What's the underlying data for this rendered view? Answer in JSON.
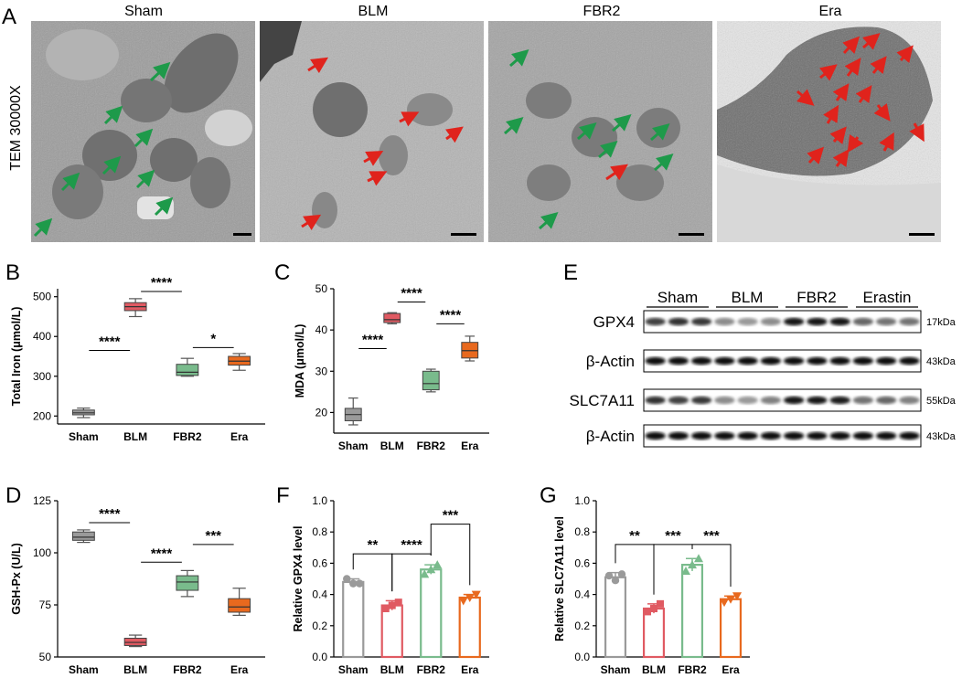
{
  "panel_letters": {
    "A": "A",
    "B": "B",
    "C": "C",
    "D": "D",
    "E": "E",
    "F": "F",
    "G": "G"
  },
  "tem": {
    "side_label": "TEM 30000X",
    "titles": [
      "Sham",
      "BLM",
      "FBR2",
      "Era"
    ],
    "colors": {
      "healthy": "#1e9a4a",
      "damaged": "#e0231c"
    }
  },
  "western_blot": {
    "groups": [
      "Sham",
      "BLM",
      "FBR2",
      "Erastin"
    ],
    "rows": [
      {
        "label": "GPX4",
        "kda": "17kDa",
        "intensities": [
          0.75,
          0.8,
          0.78,
          0.45,
          0.4,
          0.45,
          0.9,
          0.92,
          0.9,
          0.6,
          0.55,
          0.55
        ]
      },
      {
        "label": "β-Actin",
        "kda": "43kDa",
        "intensities": [
          0.95,
          0.95,
          0.95,
          0.95,
          0.95,
          0.95,
          0.95,
          0.95,
          0.95,
          0.95,
          0.95,
          0.95
        ]
      },
      {
        "label": "SLC7A11",
        "kda": "55kDa",
        "intensities": [
          0.8,
          0.75,
          0.78,
          0.45,
          0.4,
          0.5,
          0.9,
          0.9,
          0.88,
          0.55,
          0.6,
          0.5
        ]
      },
      {
        "label": "β-Actin",
        "kda": "43kDa",
        "intensities": [
          0.95,
          0.95,
          0.95,
          0.95,
          0.95,
          0.95,
          0.95,
          0.95,
          0.95,
          0.95,
          0.95,
          0.95
        ]
      }
    ]
  },
  "group_colors": [
    "#9a9a9a",
    "#e05a62",
    "#79bb8c",
    "#e8691e"
  ],
  "chart_data": [
    {
      "panel": "B",
      "type": "box",
      "categories": [
        "Sham",
        "BLM",
        "FBR2",
        "Era"
      ],
      "ylabel": "Total Iron (μmol/L)",
      "ylim": [
        180,
        520
      ],
      "yticks": [
        200,
        300,
        400,
        500
      ],
      "boxes": [
        {
          "min": 196,
          "q1": 203,
          "median": 208,
          "q3": 215,
          "max": 220
        },
        {
          "min": 450,
          "q1": 465,
          "median": 475,
          "q3": 485,
          "max": 495
        },
        {
          "min": 300,
          "q1": 302,
          "median": 310,
          "q3": 330,
          "max": 345
        },
        {
          "min": 315,
          "q1": 328,
          "median": 338,
          "q3": 350,
          "max": 357
        }
      ],
      "annotations": [
        {
          "text": "****",
          "from": 0,
          "to": 1,
          "y": 365
        },
        {
          "text": "****",
          "from": 1,
          "to": 2,
          "y": 513
        },
        {
          "text": "*",
          "from": 2,
          "to": 3,
          "y": 372
        }
      ]
    },
    {
      "panel": "C",
      "type": "box",
      "categories": [
        "Sham",
        "BLM",
        "FBR2",
        "Era"
      ],
      "ylabel": "MDA (μmol/L)",
      "ylim": [
        15,
        50
      ],
      "yticks": [
        20,
        30,
        40,
        50
      ],
      "boxes": [
        {
          "min": 17,
          "q1": 18,
          "median": 19.5,
          "q3": 21,
          "max": 23.5
        },
        {
          "min": 41.5,
          "q1": 41.8,
          "median": 42.5,
          "q3": 44,
          "max": 44.2
        },
        {
          "min": 25,
          "q1": 25.5,
          "median": 27,
          "q3": 30,
          "max": 30.5
        },
        {
          "min": 32.5,
          "q1": 33.2,
          "median": 35,
          "q3": 37,
          "max": 38.5
        }
      ],
      "annotations": [
        {
          "text": "****",
          "from": 0,
          "to": 1,
          "y": 35.5
        },
        {
          "text": "****",
          "from": 1,
          "to": 2,
          "y": 46.8
        },
        {
          "text": "****",
          "from": 2,
          "to": 3,
          "y": 41.5
        }
      ]
    },
    {
      "panel": "D",
      "type": "box",
      "categories": [
        "Sham",
        "BLM",
        "FBR2",
        "Era"
      ],
      "ylabel": "GSH-Px (U/L)",
      "ylim": [
        50,
        125
      ],
      "yticks": [
        50,
        75,
        100,
        125
      ],
      "boxes": [
        {
          "min": 105,
          "q1": 106,
          "median": 107.5,
          "q3": 110,
          "max": 111
        },
        {
          "min": 55,
          "q1": 55.5,
          "median": 57,
          "q3": 59,
          "max": 60.5
        },
        {
          "min": 79,
          "q1": 82,
          "median": 86,
          "q3": 89,
          "max": 91.5
        },
        {
          "min": 70,
          "q1": 71.5,
          "median": 74,
          "q3": 78,
          "max": 83
        }
      ],
      "annotations": [
        {
          "text": "****",
          "from": 0,
          "to": 1,
          "y": 114.5
        },
        {
          "text": "****",
          "from": 1,
          "to": 2,
          "y": 95.5
        },
        {
          "text": "***",
          "from": 2,
          "to": 3,
          "y": 104
        }
      ]
    },
    {
      "panel": "F",
      "type": "bar",
      "categories": [
        "Sham",
        "BLM",
        "FBR2",
        "Era"
      ],
      "ylabel": "Relative GPX4 level",
      "ylim": [
        0,
        1.0
      ],
      "yticks": [
        "0.0",
        "0.2",
        "0.4",
        "0.6",
        "0.8",
        "1.0"
      ],
      "values": [
        0.48,
        0.33,
        0.56,
        0.38
      ],
      "errors": [
        0.02,
        0.03,
        0.03,
        0.02
      ],
      "points": [
        [
          0.5,
          0.47,
          0.47
        ],
        [
          0.31,
          0.33,
          0.35
        ],
        [
          0.53,
          0.56,
          0.59
        ],
        [
          0.36,
          0.38,
          0.4
        ]
      ],
      "annotations": [
        {
          "text": "**",
          "from": 0,
          "to": 1,
          "y": 0.66
        },
        {
          "text": "****",
          "from": 1,
          "to": 2,
          "y": 0.66
        },
        {
          "text": "***",
          "from": 2,
          "to": 3,
          "y": 0.85
        }
      ]
    },
    {
      "panel": "G",
      "type": "bar",
      "categories": [
        "Sham",
        "BLM",
        "FBR2",
        "Era"
      ],
      "ylabel": "Relative SLC7A11 level",
      "ylim": [
        0,
        1.0
      ],
      "yticks": [
        "0.0",
        "0.2",
        "0.4",
        "0.6",
        "0.8",
        "1.0"
      ],
      "values": [
        0.51,
        0.31,
        0.59,
        0.37
      ],
      "errors": [
        0.03,
        0.03,
        0.04,
        0.02
      ],
      "points": [
        [
          0.52,
          0.49,
          0.53
        ],
        [
          0.29,
          0.31,
          0.34
        ],
        [
          0.55,
          0.59,
          0.63
        ],
        [
          0.35,
          0.37,
          0.39
        ]
      ],
      "annotations": [
        {
          "text": "**",
          "from": 0,
          "to": 1,
          "y": 0.72
        },
        {
          "text": "***",
          "from": 1,
          "to": 2,
          "y": 0.72
        },
        {
          "text": "***",
          "from": 2,
          "to": 3,
          "y": 0.72
        }
      ]
    }
  ]
}
